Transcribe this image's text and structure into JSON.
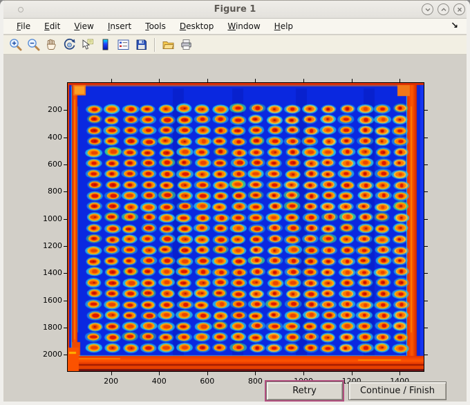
{
  "window": {
    "title": "Figure 1",
    "controls": {
      "minimize": "chevron-down",
      "maximize": "chevron-up",
      "close": "x"
    }
  },
  "menubar": {
    "items": [
      {
        "mnemonic": "F",
        "rest": "ile"
      },
      {
        "mnemonic": "E",
        "rest": "dit"
      },
      {
        "mnemonic": "V",
        "rest": "iew"
      },
      {
        "mnemonic": "I",
        "rest": "nsert"
      },
      {
        "mnemonic": "T",
        "rest": "ools"
      },
      {
        "mnemonic": "D",
        "rest": "esktop"
      },
      {
        "mnemonic": "W",
        "rest": "indow"
      },
      {
        "mnemonic": "H",
        "rest": "elp"
      }
    ],
    "dock_arrow": "↘"
  },
  "toolbar": {
    "buttons": [
      "zoom-in",
      "zoom-out",
      "pan",
      "rotate-3d",
      "data-cursor",
      "insert-colorbar",
      "insert-legend",
      "save-figure",
      "open-file",
      "print-figure"
    ]
  },
  "action_buttons": {
    "retry": "Retry",
    "continue": "Continue / Finish"
  },
  "chart_data": {
    "type": "heatmap",
    "title": "",
    "colormap": "jet",
    "description": "Scanned multiwell assay plate shown with jet colormap: 18x23 grid of spots with red cores, orange-yellow rings and cyan halos on saturated blue background; bright red scan borders on all edges with orange corner registration marks",
    "xlabel": "",
    "ylabel": "",
    "x_ticks": [
      200,
      400,
      600,
      800,
      1000,
      1200,
      1400
    ],
    "y_ticks": [
      200,
      400,
      600,
      800,
      1000,
      1200,
      1400,
      1600,
      1800,
      2000
    ],
    "xlim": [
      20,
      1500
    ],
    "ylim": [
      0,
      2120
    ],
    "grid_on": false,
    "spot_grid": {
      "cols": 18,
      "rows": 23,
      "x_start": 130,
      "y_start": 190,
      "x_pitch": 75,
      "y_pitch": 80
    },
    "colors": {
      "background": "#0a28e0",
      "spot_core": "#dd1500",
      "spot_ring": "#ffb400",
      "spot_halo": "#28c6ea",
      "edge_red": "#e33a00",
      "edge_orange": "#ff5a00",
      "corner_mark": "#f07818"
    }
  }
}
